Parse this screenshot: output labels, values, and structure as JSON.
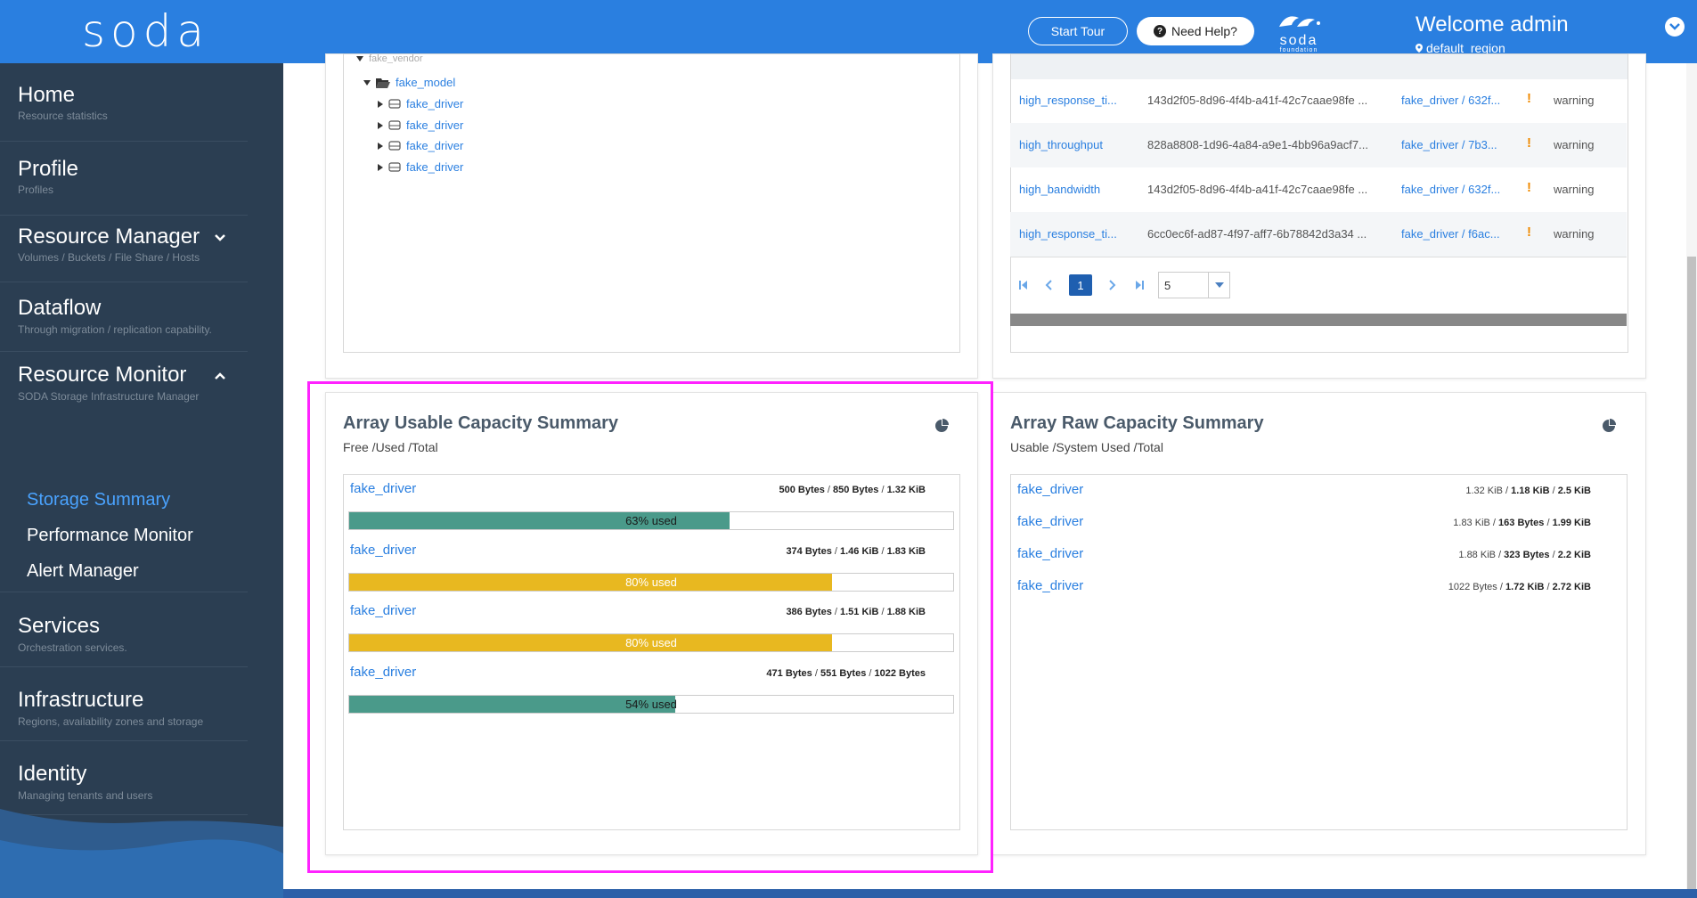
{
  "header": {
    "logo": "soda",
    "start_tour": "Start Tour",
    "need_help": "Need Help?",
    "foundation_logo_text": "soda",
    "foundation_logo_sub": "foundation",
    "welcome": "Welcome admin",
    "region": "default_region",
    "brand_color": "#2a7fe0"
  },
  "sidebar": {
    "home": {
      "title": "Home",
      "sub": "Resource statistics"
    },
    "profile": {
      "title": "Profile",
      "sub": "Profiles"
    },
    "resource_manager": {
      "title": "Resource Manager",
      "sub": "Volumes / Buckets / File Share / Hosts"
    },
    "dataflow": {
      "title": "Dataflow",
      "sub": "Through migration / replication capability."
    },
    "resource_monitor": {
      "title": "Resource Monitor",
      "sub": "SODA Storage Infrastructure Manager"
    },
    "storage_summary": "Storage Summary",
    "performance_monitor": "Performance Monitor",
    "alert_manager": "Alert Manager",
    "services": {
      "title": "Services",
      "sub": "Orchestration services."
    },
    "infrastructure": {
      "title": "Infrastructure",
      "sub": "Regions, availability zones and storage"
    },
    "identity": {
      "title": "Identity",
      "sub": "Managing tenants and users"
    }
  },
  "tree": {
    "partial_top": "fake_vendor",
    "model": "fake_model",
    "drivers": [
      "fake_driver",
      "fake_driver",
      "fake_driver",
      "fake_driver"
    ]
  },
  "alerts": {
    "rows": [
      {
        "name": "high_response_ti...",
        "id": "143d2f05-8d96-4f4b-a41f-42c7caae98fe ...",
        "source": "fake_driver / 632f...",
        "severity": "warning"
      },
      {
        "name": "high_throughput",
        "id": "828a8808-1d96-4a84-a9e1-4bb96a9acf7...",
        "source": "fake_driver / 7b3...",
        "severity": "warning"
      },
      {
        "name": "high_bandwidth",
        "id": "143d2f05-8d96-4f4b-a41f-42c7caae98fe ...",
        "source": "fake_driver / 632f...",
        "severity": "warning"
      },
      {
        "name": "high_response_ti...",
        "id": "6cc0ec6f-ad87-4f97-aff7-6b78842d3a34 ...",
        "source": "fake_driver / f6ac...",
        "severity": "warning"
      }
    ],
    "pager": {
      "current_page": "1",
      "page_size": "5"
    }
  },
  "usable_capacity": {
    "title": "Array Usable Capacity Summary",
    "subtitle": "Free /Used /Total",
    "items": [
      {
        "name": "fake_driver",
        "free": "500 Bytes",
        "used": "850 Bytes",
        "total": "1.32 KiB",
        "percent": 63,
        "label": "63% used",
        "color": "#4a9a8a"
      },
      {
        "name": "fake_driver",
        "free": "374 Bytes",
        "used": "1.46 KiB",
        "total": "1.83 KiB",
        "percent": 80,
        "label": "80% used",
        "color": "#e8b820"
      },
      {
        "name": "fake_driver",
        "free": "386 Bytes",
        "used": "1.51 KiB",
        "total": "1.88 KiB",
        "percent": 80,
        "label": "80% used",
        "color": "#e8b820"
      },
      {
        "name": "fake_driver",
        "free": "471 Bytes",
        "used": "551 Bytes",
        "total": "1022 Bytes",
        "percent": 54,
        "label": "54% used",
        "color": "#4a9a8a"
      }
    ]
  },
  "raw_capacity": {
    "title": "Array Raw Capacity Summary",
    "subtitle": "Usable /System Used /Total",
    "items": [
      {
        "name": "fake_driver",
        "usable": "1.32 KiB",
        "system_used": "1.18 KiB",
        "total": "2.5 KiB"
      },
      {
        "name": "fake_driver",
        "usable": "1.83 KiB",
        "system_used": "163 Bytes",
        "total": "1.99 KiB"
      },
      {
        "name": "fake_driver",
        "usable": "1.88 KiB",
        "system_used": "323 Bytes",
        "total": "2.2 KiB"
      },
      {
        "name": "fake_driver",
        "usable": "1022 Bytes",
        "system_used": "1.72 KiB",
        "total": "2.72 KiB"
      }
    ]
  }
}
